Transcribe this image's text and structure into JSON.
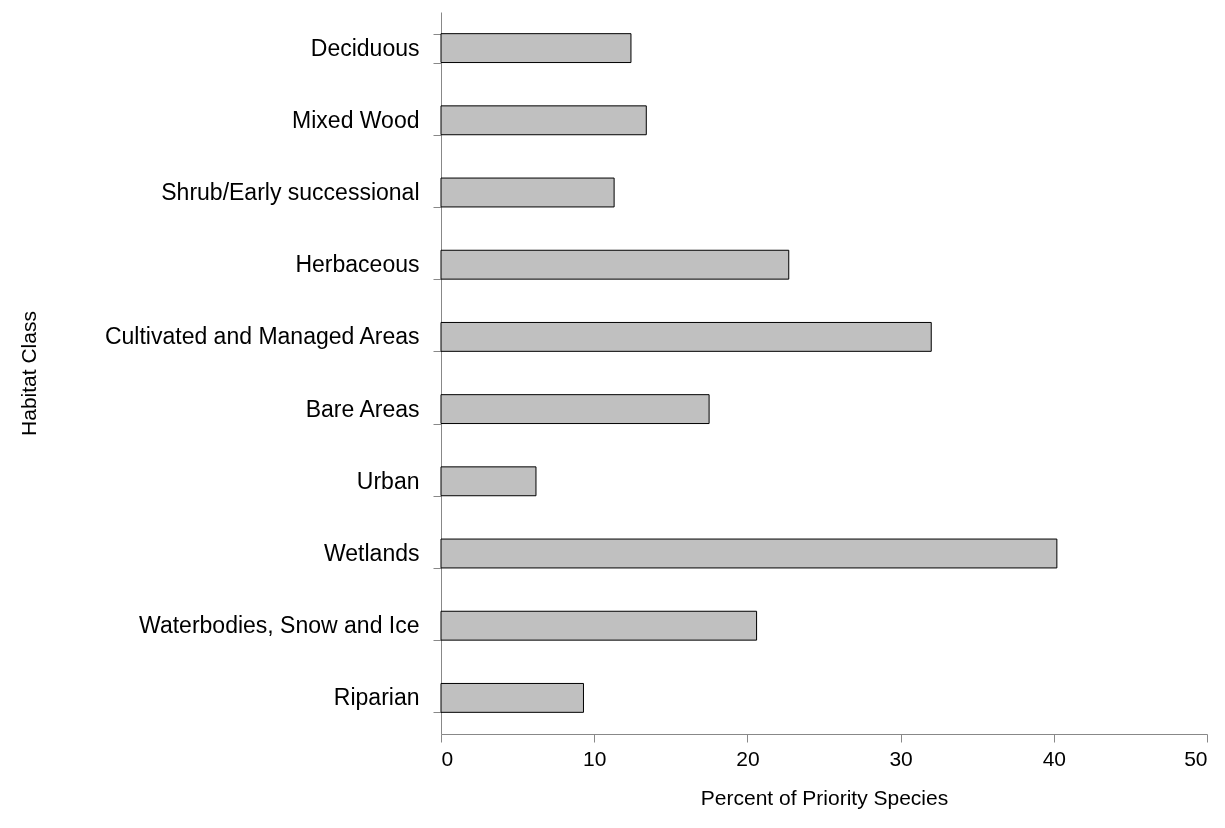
{
  "chart_data": {
    "type": "bar",
    "orientation": "horizontal",
    "categories": [
      "Deciduous",
      "Mixed Wood",
      "Shrub/Early successional",
      "Herbaceous",
      "Cultivated and Managed Areas",
      "Bare Areas",
      "Urban",
      "Wetlands",
      "Waterbodies, Snow and Ice",
      "Riparian"
    ],
    "values": [
      12.4,
      13.4,
      11.3,
      22.7,
      32.0,
      17.5,
      6.2,
      40.2,
      20.6,
      9.3
    ],
    "color": "#c0c0c0",
    "xlim": [
      0,
      50
    ],
    "xticks": [
      0,
      10,
      20,
      30,
      40,
      50
    ],
    "xlabel": "Percent of Priority Species",
    "ylabel": "Habitat Class",
    "grid": false
  }
}
